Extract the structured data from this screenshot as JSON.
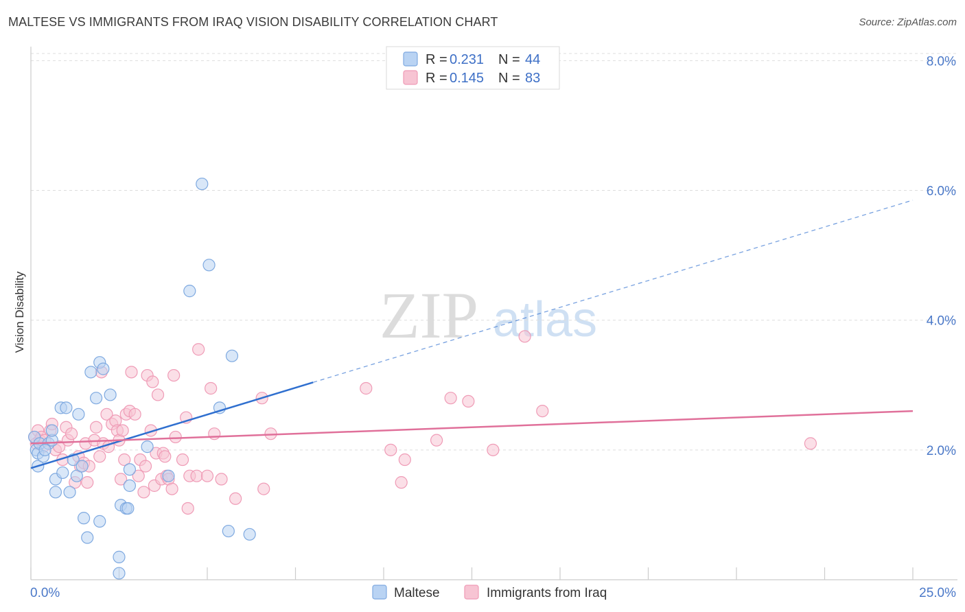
{
  "header": {
    "title": "MALTESE VS IMMIGRANTS FROM IRAQ VISION DISABILITY CORRELATION CHART",
    "source": "Source: ZipAtlas.com"
  },
  "watermark": {
    "zip": "ZIP",
    "atlas": "atlas"
  },
  "legend": {
    "r_label": "R =",
    "n_label": "N =",
    "entries": [
      {
        "name": "Maltese",
        "r": "0.231",
        "n": "44"
      },
      {
        "name": "Immigrants from Iraq",
        "r": "0.145",
        "n": "83"
      }
    ]
  },
  "colors": {
    "maltese_fill": "#b9d3f3",
    "maltese_stroke": "#7ea9e0",
    "maltese_line": "#2f6fcf",
    "iraq_fill": "#f7c4d3",
    "iraq_stroke": "#ef9bb6",
    "iraq_line": "#e0709a",
    "tick_text": "#4a78c8",
    "grid": "#dddddd"
  },
  "chart_data": {
    "type": "scatter",
    "title": "MALTESE VS IMMIGRANTS FROM IRAQ VISION DISABILITY CORRELATION CHART",
    "xlabel": "",
    "ylabel": "Vision Disability",
    "xlim": [
      0,
      25
    ],
    "ylim": [
      0,
      8.3
    ],
    "x_ticks": [
      {
        "value": 0,
        "label": "0.0%"
      },
      {
        "value": 25,
        "label": "25.0%"
      }
    ],
    "y_ticks": [
      {
        "value": 2,
        "label": "2.0%"
      },
      {
        "value": 4,
        "label": "4.0%"
      },
      {
        "value": 6,
        "label": "6.0%"
      },
      {
        "value": 8,
        "label": "8.0%"
      }
    ],
    "grid": true,
    "legend_position": "top-center",
    "series": [
      {
        "name": "Maltese",
        "r": 0.231,
        "n": 44,
        "trend": {
          "x0": 0,
          "y0": 1.72,
          "x_solid_end": 8.0,
          "x1": 25,
          "y1": 5.85
        },
        "points": [
          [
            0.1,
            2.2
          ],
          [
            0.15,
            2.0
          ],
          [
            0.2,
            1.95
          ],
          [
            0.25,
            2.1
          ],
          [
            0.2,
            1.75
          ],
          [
            0.35,
            1.9
          ],
          [
            0.5,
            2.1
          ],
          [
            0.4,
            2.0
          ],
          [
            0.6,
            2.15
          ],
          [
            0.6,
            2.3
          ],
          [
            0.7,
            1.35
          ],
          [
            0.7,
            1.55
          ],
          [
            0.85,
            2.65
          ],
          [
            0.9,
            1.65
          ],
          [
            1.0,
            2.65
          ],
          [
            1.1,
            1.35
          ],
          [
            1.2,
            1.85
          ],
          [
            1.3,
            1.6
          ],
          [
            1.35,
            2.55
          ],
          [
            1.45,
            1.75
          ],
          [
            1.5,
            0.95
          ],
          [
            1.6,
            0.65
          ],
          [
            1.7,
            3.2
          ],
          [
            1.85,
            2.8
          ],
          [
            1.95,
            0.9
          ],
          [
            1.95,
            3.35
          ],
          [
            2.05,
            3.25
          ],
          [
            2.25,
            2.85
          ],
          [
            2.5,
            0.35
          ],
          [
            2.5,
            0.1
          ],
          [
            2.55,
            1.15
          ],
          [
            2.7,
            1.1
          ],
          [
            2.75,
            1.1
          ],
          [
            2.8,
            1.45
          ],
          [
            2.8,
            1.7
          ],
          [
            3.3,
            2.05
          ],
          [
            3.9,
            1.6
          ],
          [
            4.5,
            4.45
          ],
          [
            4.85,
            6.1
          ],
          [
            5.05,
            4.85
          ],
          [
            5.35,
            2.65
          ],
          [
            5.6,
            0.75
          ],
          [
            5.7,
            3.45
          ],
          [
            6.2,
            0.7
          ]
        ]
      },
      {
        "name": "Immigrants from Iraq",
        "r": 0.145,
        "n": 83,
        "trend": {
          "x0": 0,
          "y0": 2.1,
          "x1": 25,
          "y1": 2.6
        },
        "points": [
          [
            0.1,
            2.2
          ],
          [
            0.15,
            2.1
          ],
          [
            0.2,
            2.3
          ],
          [
            0.25,
            2.15
          ],
          [
            0.3,
            2.2
          ],
          [
            0.35,
            2.05
          ],
          [
            0.4,
            2.15
          ],
          [
            0.55,
            2.3
          ],
          [
            0.6,
            2.4
          ],
          [
            0.7,
            2.0
          ],
          [
            0.8,
            2.05
          ],
          [
            0.9,
            1.85
          ],
          [
            1.0,
            2.35
          ],
          [
            1.05,
            2.15
          ],
          [
            1.15,
            2.25
          ],
          [
            1.25,
            1.5
          ],
          [
            1.35,
            1.9
          ],
          [
            1.4,
            1.75
          ],
          [
            1.5,
            1.8
          ],
          [
            1.55,
            2.1
          ],
          [
            1.6,
            1.5
          ],
          [
            1.65,
            1.75
          ],
          [
            1.8,
            2.15
          ],
          [
            1.85,
            2.35
          ],
          [
            1.95,
            1.9
          ],
          [
            2.0,
            3.2
          ],
          [
            2.05,
            2.1
          ],
          [
            2.15,
            2.55
          ],
          [
            2.2,
            2.05
          ],
          [
            2.3,
            2.4
          ],
          [
            2.4,
            2.45
          ],
          [
            2.45,
            2.3
          ],
          [
            2.5,
            2.15
          ],
          [
            2.55,
            1.55
          ],
          [
            2.6,
            2.3
          ],
          [
            2.65,
            1.85
          ],
          [
            2.7,
            2.55
          ],
          [
            2.8,
            2.6
          ],
          [
            2.85,
            3.2
          ],
          [
            2.95,
            2.55
          ],
          [
            3.05,
            1.6
          ],
          [
            3.1,
            1.85
          ],
          [
            3.2,
            1.35
          ],
          [
            3.25,
            1.75
          ],
          [
            3.3,
            3.15
          ],
          [
            3.4,
            2.3
          ],
          [
            3.45,
            3.05
          ],
          [
            3.5,
            1.45
          ],
          [
            3.55,
            1.95
          ],
          [
            3.6,
            2.85
          ],
          [
            3.7,
            1.55
          ],
          [
            3.75,
            1.95
          ],
          [
            3.8,
            1.9
          ],
          [
            3.85,
            1.6
          ],
          [
            3.9,
            1.55
          ],
          [
            4.0,
            1.4
          ],
          [
            4.05,
            3.15
          ],
          [
            4.1,
            2.2
          ],
          [
            4.3,
            1.85
          ],
          [
            4.4,
            2.5
          ],
          [
            4.45,
            1.1
          ],
          [
            4.5,
            1.6
          ],
          [
            4.7,
            1.6
          ],
          [
            4.75,
            3.55
          ],
          [
            5.0,
            1.6
          ],
          [
            5.1,
            2.95
          ],
          [
            5.2,
            2.25
          ],
          [
            5.4,
            1.55
          ],
          [
            5.8,
            1.25
          ],
          [
            6.55,
            2.8
          ],
          [
            6.6,
            1.4
          ],
          [
            6.8,
            2.25
          ],
          [
            9.5,
            2.95
          ],
          [
            10.2,
            2.0
          ],
          [
            10.5,
            1.5
          ],
          [
            10.6,
            1.85
          ],
          [
            11.5,
            2.15
          ],
          [
            11.9,
            2.8
          ],
          [
            12.4,
            2.75
          ],
          [
            13.1,
            2.0
          ],
          [
            14.0,
            3.75
          ],
          [
            14.5,
            2.6
          ],
          [
            22.1,
            2.1
          ]
        ]
      }
    ]
  }
}
